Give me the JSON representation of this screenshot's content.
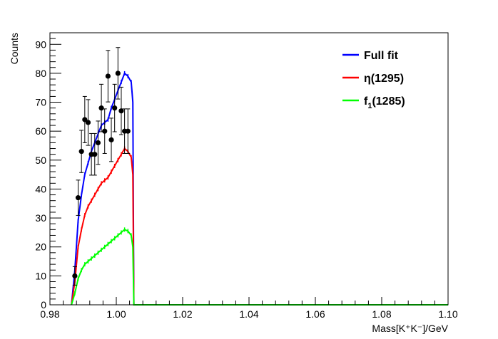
{
  "chart_data": {
    "type": "line",
    "xlabel": "Mass[K⁺K⁻]/GeV",
    "ylabel": "Counts",
    "xlim": [
      0.98,
      1.1
    ],
    "ylim": [
      0,
      94
    ],
    "x_ticks": [
      "0.98",
      "1.00",
      "1.02",
      "1.04",
      "1.06",
      "1.08",
      "1.10"
    ],
    "y_ticks": [
      "0",
      "10",
      "20",
      "30",
      "40",
      "50",
      "60",
      "70",
      "80",
      "90"
    ],
    "grid": false,
    "legend_position": "top-right",
    "legend": [
      {
        "label": "Full fit",
        "color": "#0000ff"
      },
      {
        "label": "η(1295)",
        "color": "#ff0000"
      },
      {
        "label": "f1(1285)",
        "label_main": "f",
        "label_sub": "1",
        "label_rest": "(1285)",
        "color": "#00ff00"
      }
    ],
    "data_points": {
      "color": "#000000",
      "x": [
        0.9875,
        0.9885,
        0.9895,
        0.9905,
        0.9915,
        0.9925,
        0.9935,
        0.9945,
        0.9955,
        0.9965,
        0.9975,
        0.9985,
        0.9995,
        1.0005,
        1.0015,
        1.0025,
        1.0035
      ],
      "y": [
        10,
        37,
        53,
        64,
        63,
        52,
        52,
        56,
        68,
        60,
        79,
        57,
        68,
        80,
        67,
        60,
        60
      ],
      "err": [
        3.2,
        6.1,
        7.3,
        8.0,
        7.9,
        7.2,
        7.2,
        7.5,
        8.2,
        7.7,
        8.9,
        7.5,
        8.2,
        8.9,
        8.2,
        7.7,
        7.7
      ]
    },
    "series": [
      {
        "name": "Full fit",
        "color": "#0000ff",
        "x": [
          0.9865,
          0.9875,
          0.9885,
          0.9895,
          0.9905,
          0.9915,
          0.9925,
          0.9935,
          0.9945,
          0.9955,
          0.9965,
          0.9975,
          0.9985,
          0.9995,
          1.0005,
          1.0015,
          1.0025,
          1.0035,
          1.0045,
          1.005,
          1.0053,
          1.1
        ],
        "y": [
          0,
          12,
          29,
          38,
          45,
          49,
          53,
          56,
          59,
          62,
          63,
          64,
          68,
          71,
          74,
          77,
          80,
          79,
          77,
          70,
          0,
          0
        ]
      },
      {
        "name": "η(1295)",
        "color": "#ff0000",
        "x": [
          0.9865,
          0.9875,
          0.9885,
          0.9895,
          0.9905,
          0.9915,
          0.9925,
          0.9935,
          0.9945,
          0.9955,
          0.9965,
          0.9975,
          0.9985,
          0.9995,
          1.0005,
          1.0015,
          1.0025,
          1.0035,
          1.0045,
          1.005,
          1.0053,
          1.1
        ],
        "y": [
          0,
          8,
          20,
          26,
          31,
          34,
          36,
          38,
          40,
          42,
          43,
          44,
          46,
          48,
          50,
          52,
          54,
          53,
          51,
          45,
          0,
          0
        ]
      },
      {
        "name": "f1(1285)",
        "color": "#00ff00",
        "x": [
          0.9865,
          0.9875,
          0.9885,
          0.9895,
          0.9905,
          0.9915,
          0.9925,
          0.9935,
          0.9945,
          0.9955,
          0.9965,
          0.9975,
          0.9985,
          0.9995,
          1.0005,
          1.0015,
          1.0025,
          1.0035,
          1.0045,
          1.005,
          1.0053,
          1.1
        ],
        "y": [
          0,
          4,
          9,
          12,
          14,
          15,
          16,
          17,
          18,
          19,
          20,
          21,
          22,
          23,
          24,
          25,
          26,
          25.5,
          24,
          20,
          0,
          0
        ]
      }
    ]
  }
}
